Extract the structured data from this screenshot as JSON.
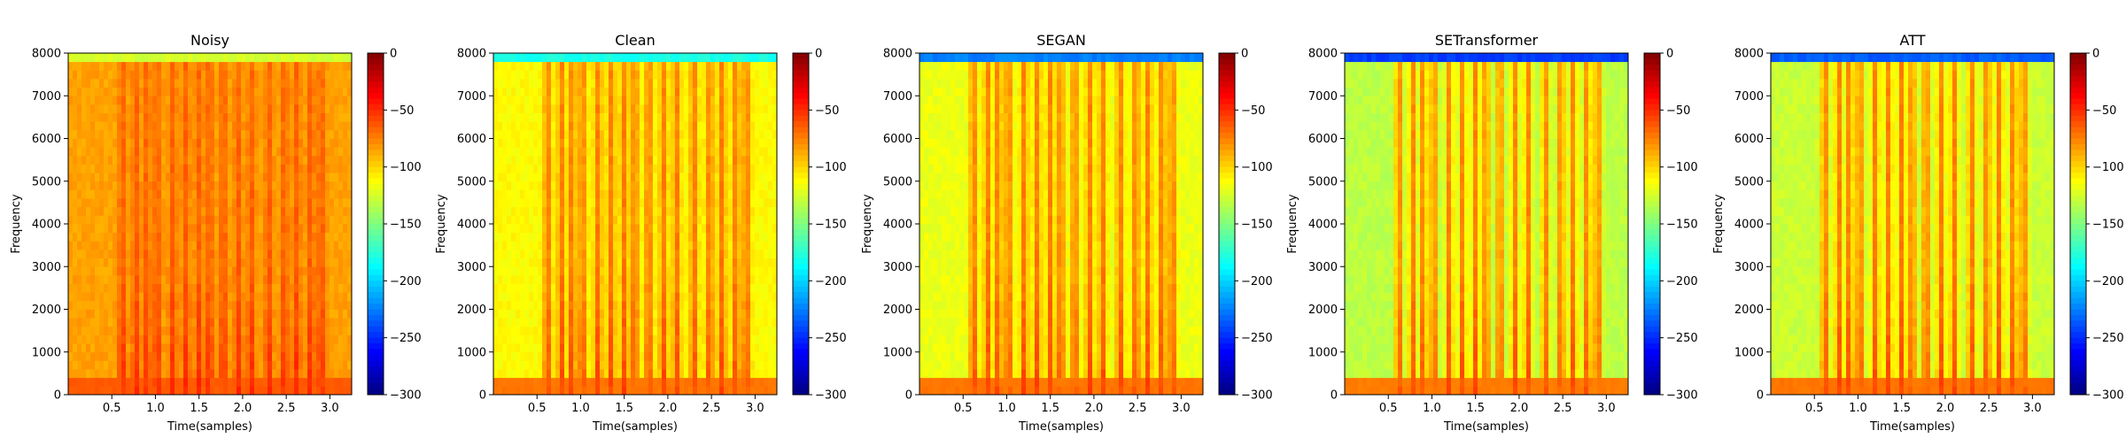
{
  "chart_data": [
    {
      "type": "heatmap",
      "title": "Noisy",
      "xlabel": "Time(samples)",
      "ylabel": "Frequency",
      "x_ticks": [
        0.5,
        1.0,
        1.5,
        2.0,
        2.5,
        3.0
      ],
      "x_tick_labels": [
        "0.5",
        "1.0",
        "1.5",
        "2.0",
        "2.5",
        "3.0"
      ],
      "xlim": [
        0,
        3.25
      ],
      "y_ticks": [
        0,
        1000,
        2000,
        3000,
        4000,
        5000,
        6000,
        7000,
        8000
      ],
      "y_tick_labels": [
        "0",
        "1000",
        "2000",
        "3000",
        "4000",
        "5000",
        "6000",
        "7000",
        "8000"
      ],
      "ylim": [
        0,
        8000
      ],
      "colorbar": {
        "ticks": [
          0,
          -50,
          -100,
          -150,
          -200,
          -250,
          -300
        ],
        "tick_labels": [
          "0",
          "−50",
          "−100",
          "−150",
          "−200",
          "−250",
          "−300"
        ],
        "range": [
          -300,
          0
        ],
        "colormap": "jet"
      },
      "profile": {
        "background_db": -85,
        "speech_db": -62,
        "top_band_db": -130
      }
    },
    {
      "type": "heatmap",
      "title": "Clean",
      "xlabel": "Time(samples)",
      "ylabel": "Frequency",
      "x_ticks": [
        0.5,
        1.0,
        1.5,
        2.0,
        2.5,
        3.0
      ],
      "x_tick_labels": [
        "0.5",
        "1.0",
        "1.5",
        "2.0",
        "2.5",
        "3.0"
      ],
      "xlim": [
        0,
        3.25
      ],
      "y_ticks": [
        0,
        1000,
        2000,
        3000,
        4000,
        5000,
        6000,
        7000,
        8000
      ],
      "y_tick_labels": [
        "0",
        "1000",
        "2000",
        "3000",
        "4000",
        "5000",
        "6000",
        "7000",
        "8000"
      ],
      "ylim": [
        0,
        8000
      ],
      "colorbar": {
        "ticks": [
          0,
          -50,
          -100,
          -150,
          -200,
          -250,
          -300
        ],
        "tick_labels": [
          "0",
          "−50",
          "−100",
          "−150",
          "−200",
          "−250",
          "−300"
        ],
        "range": [
          -300,
          0
        ],
        "colormap": "jet"
      },
      "profile": {
        "background_db": -112,
        "speech_db": -70,
        "top_band_db": -185
      }
    },
    {
      "type": "heatmap",
      "title": "SEGAN",
      "xlabel": "Time(samples)",
      "ylabel": "Frequency",
      "x_ticks": [
        0.5,
        1.0,
        1.5,
        2.0,
        2.5,
        3.0
      ],
      "x_tick_labels": [
        "0.5",
        "1.0",
        "1.5",
        "2.0",
        "2.5",
        "3.0"
      ],
      "xlim": [
        0,
        3.25
      ],
      "y_ticks": [
        0,
        1000,
        2000,
        3000,
        4000,
        5000,
        6000,
        7000,
        8000
      ],
      "y_tick_labels": [
        "0",
        "1000",
        "2000",
        "3000",
        "4000",
        "5000",
        "6000",
        "7000",
        "8000"
      ],
      "ylim": [
        0,
        8000
      ],
      "colorbar": {
        "ticks": [
          0,
          -50,
          -100,
          -150,
          -200,
          -250,
          -300
        ],
        "tick_labels": [
          "0",
          "−50",
          "−100",
          "−150",
          "−200",
          "−250",
          "−300"
        ],
        "range": [
          -300,
          0
        ],
        "colormap": "jet"
      },
      "profile": {
        "background_db": -118,
        "speech_db": -70,
        "top_band_db": -230
      }
    },
    {
      "type": "heatmap",
      "title": "SETransformer",
      "xlabel": "Time(samples)",
      "ylabel": "Frequency",
      "x_ticks": [
        0.5,
        1.0,
        1.5,
        2.0,
        2.5,
        3.0
      ],
      "x_tick_labels": [
        "0.5",
        "1.0",
        "1.5",
        "2.0",
        "2.5",
        "3.0"
      ],
      "xlim": [
        0,
        3.25
      ],
      "y_ticks": [
        0,
        1000,
        2000,
        3000,
        4000,
        5000,
        6000,
        7000,
        8000
      ],
      "y_tick_labels": [
        "0",
        "1000",
        "2000",
        "3000",
        "4000",
        "5000",
        "6000",
        "7000",
        "8000"
      ],
      "ylim": [
        0,
        8000
      ],
      "colorbar": {
        "ticks": [
          0,
          -50,
          -100,
          -150,
          -200,
          -250,
          -300
        ],
        "tick_labels": [
          "0",
          "−50",
          "−100",
          "−150",
          "−200",
          "−250",
          "−300"
        ],
        "range": [
          -300,
          0
        ],
        "colormap": "jet"
      },
      "profile": {
        "background_db": -132,
        "speech_db": -72,
        "top_band_db": -250
      }
    },
    {
      "type": "heatmap",
      "title": "ATT",
      "xlabel": "Time(samples)",
      "ylabel": "Frequency",
      "x_ticks": [
        0.5,
        1.0,
        1.5,
        2.0,
        2.5,
        3.0
      ],
      "x_tick_labels": [
        "0.5",
        "1.0",
        "1.5",
        "2.0",
        "2.5",
        "3.0"
      ],
      "xlim": [
        0,
        3.25
      ],
      "y_ticks": [
        0,
        1000,
        2000,
        3000,
        4000,
        5000,
        6000,
        7000,
        8000
      ],
      "y_tick_labels": [
        "0",
        "1000",
        "2000",
        "3000",
        "4000",
        "5000",
        "6000",
        "7000",
        "8000"
      ],
      "ylim": [
        0,
        8000
      ],
      "colorbar": {
        "ticks": [
          0,
          -50,
          -100,
          -150,
          -200,
          -250,
          -300
        ],
        "tick_labels": [
          "0",
          "−50",
          "−100",
          "−150",
          "−200",
          "−250",
          "−300"
        ],
        "range": [
          -300,
          0
        ],
        "colormap": "jet"
      },
      "profile": {
        "background_db": -128,
        "speech_db": -70,
        "top_band_db": -240
      }
    }
  ]
}
